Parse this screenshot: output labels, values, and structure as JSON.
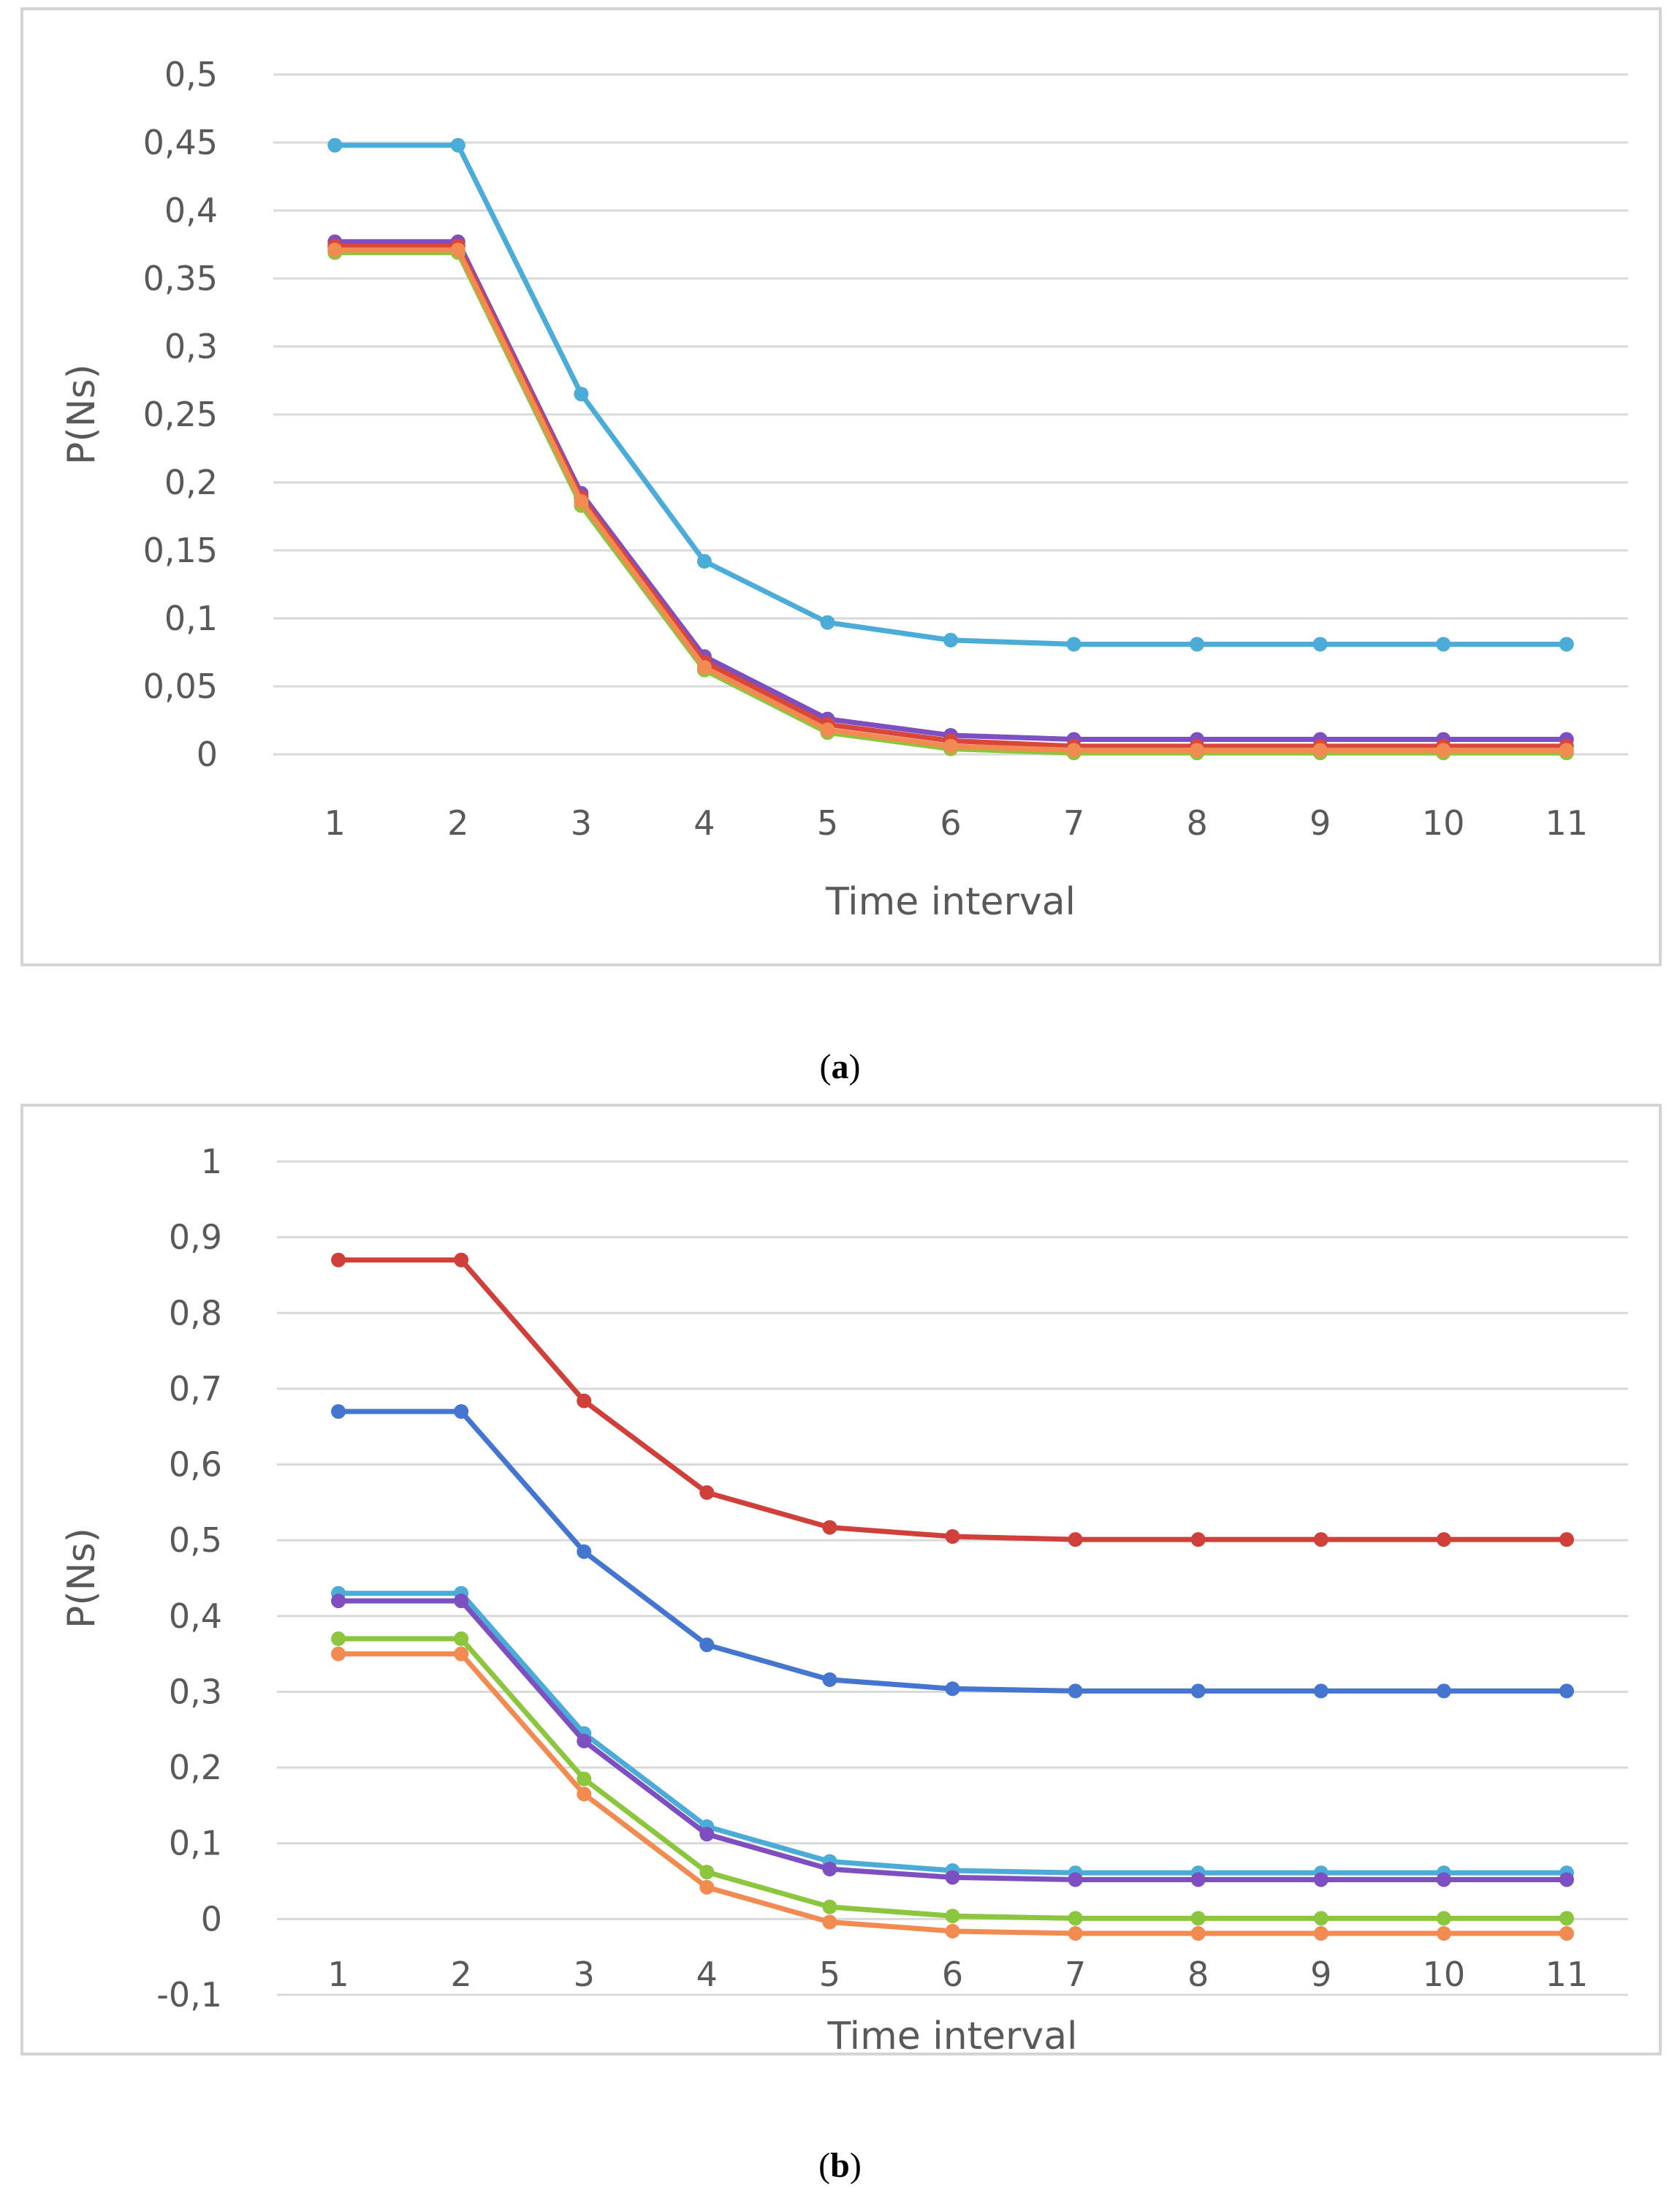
{
  "panels": [
    {
      "caption_open": "(",
      "caption_letter": "a",
      "caption_close": ")"
    },
    {
      "caption_open": "(",
      "caption_letter": "b",
      "caption_close": ")"
    }
  ],
  "chart_data": [
    {
      "type": "line",
      "panel": "a",
      "title": "",
      "xlabel": "Time interval",
      "ylabel": "P(Ns)",
      "categories": [
        "1",
        "2",
        "3",
        "4",
        "5",
        "6",
        "7",
        "8",
        "9",
        "10",
        "11"
      ],
      "ylim": [
        0,
        0.5
      ],
      "yticks": [
        0,
        0.05,
        0.1,
        0.15,
        0.2,
        0.25,
        0.3,
        0.35,
        0.4,
        0.45,
        0.5
      ],
      "ytick_labels": [
        "0",
        "0,05",
        "0,1",
        "0,15",
        "0,2",
        "0,25",
        "0,3",
        "0,35",
        "0,4",
        "0,45",
        "0,5"
      ],
      "grid": true,
      "series": [
        {
          "name": "series-light-blue",
          "color": "#4bacd8",
          "values": [
            0.448,
            0.448,
            0.265,
            0.142,
            0.097,
            0.084,
            0.081,
            0.081,
            0.081,
            0.081,
            0.081
          ]
        },
        {
          "name": "series-purple",
          "color": "#7d4fc0",
          "values": [
            0.377,
            0.377,
            0.192,
            0.072,
            0.026,
            0.014,
            0.011,
            0.011,
            0.011,
            0.011,
            0.011
          ]
        },
        {
          "name": "series-red",
          "color": "#d9473b",
          "values": [
            0.374,
            0.374,
            0.189,
            0.068,
            0.022,
            0.01,
            0.006,
            0.006,
            0.006,
            0.006,
            0.006
          ]
        },
        {
          "name": "series-green",
          "color": "#8cc63e",
          "values": [
            0.369,
            0.369,
            0.183,
            0.062,
            0.016,
            0.004,
            0.001,
            0.001,
            0.001,
            0.001,
            0.001
          ]
        },
        {
          "name": "series-orange",
          "color": "#f28b52",
          "values": [
            0.371,
            0.371,
            0.186,
            0.064,
            0.018,
            0.006,
            0.003,
            0.003,
            0.003,
            0.003,
            0.003
          ]
        }
      ]
    },
    {
      "type": "line",
      "panel": "b",
      "title": "",
      "xlabel": "Time interval",
      "ylabel": "P(Ns)",
      "categories": [
        "1",
        "2",
        "3",
        "4",
        "5",
        "6",
        "7",
        "8",
        "9",
        "10",
        "11"
      ],
      "ylim": [
        -0.1,
        1
      ],
      "yticks": [
        -0.1,
        0,
        0.1,
        0.2,
        0.3,
        0.4,
        0.5,
        0.6,
        0.7,
        0.8,
        0.9,
        1
      ],
      "ytick_labels": [
        "-0,1",
        "0",
        "0,1",
        "0,2",
        "0,3",
        "0,4",
        "0,5",
        "0,6",
        "0,7",
        "0,8",
        "0,9",
        "1"
      ],
      "grid": true,
      "series": [
        {
          "name": "series-red",
          "color": "#d0403a",
          "values": [
            0.87,
            0.87,
            0.684,
            0.563,
            0.517,
            0.505,
            0.501,
            0.501,
            0.501,
            0.501,
            0.501
          ]
        },
        {
          "name": "series-blue",
          "color": "#4475cf",
          "values": [
            0.67,
            0.67,
            0.485,
            0.362,
            0.316,
            0.304,
            0.301,
            0.301,
            0.301,
            0.301,
            0.301
          ]
        },
        {
          "name": "series-light-blue",
          "color": "#4bacd8",
          "values": [
            0.43,
            0.43,
            0.245,
            0.122,
            0.076,
            0.064,
            0.061,
            0.061,
            0.061,
            0.061,
            0.061
          ]
        },
        {
          "name": "series-purple",
          "color": "#7d4fc0",
          "values": [
            0.42,
            0.42,
            0.235,
            0.112,
            0.066,
            0.055,
            0.052,
            0.052,
            0.052,
            0.052,
            0.052
          ]
        },
        {
          "name": "series-green",
          "color": "#8cc63e",
          "values": [
            0.37,
            0.37,
            0.185,
            0.062,
            0.016,
            0.004,
            0.001,
            0.001,
            0.001,
            0.001,
            0.001
          ]
        },
        {
          "name": "series-orange",
          "color": "#f28b52",
          "values": [
            0.35,
            0.35,
            0.165,
            0.042,
            -0.004,
            -0.016,
            -0.019,
            -0.019,
            -0.019,
            -0.019,
            -0.019
          ]
        }
      ]
    }
  ]
}
